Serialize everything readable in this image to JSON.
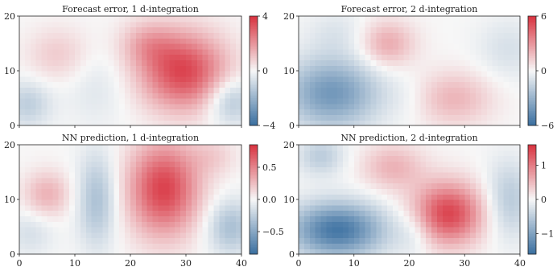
{
  "chart_data": [
    {
      "type": "heatmap",
      "title": "Forecast error, 1 d-integration",
      "xlim": [
        0,
        40
      ],
      "ylim": [
        0,
        20
      ],
      "x_ticks": [],
      "y_ticks": [
        "0",
        "10",
        "20"
      ],
      "colorbar": {
        "min": -4,
        "max": 4,
        "ticks": [
          "4",
          "0",
          "−4"
        ],
        "tick_values": [
          4,
          0,
          -4
        ]
      },
      "colormap": {
        "negative": "#3a6fa0",
        "neutral": "#f7f7f7",
        "positive": "#d8323f"
      },
      "blobs": [
        {
          "x": 29.5,
          "y": 10,
          "sx": 5.5,
          "sy": 5,
          "amp": 3.6
        },
        {
          "x": 23,
          "y": 15,
          "sx": 3.5,
          "sy": 3,
          "amp": 1.2
        },
        {
          "x": 7,
          "y": 13,
          "sx": 4,
          "sy": 3.5,
          "amp": 0.9
        },
        {
          "x": 1.5,
          "y": 4,
          "sx": 3,
          "sy": 3,
          "amp": -1.2
        },
        {
          "x": 38,
          "y": 4.5,
          "sx": 3,
          "sy": 3,
          "amp": -1.6
        },
        {
          "x": 14,
          "y": 7,
          "sx": 4,
          "sy": 5,
          "amp": -0.5
        }
      ]
    },
    {
      "type": "heatmap",
      "title": "Forecast error, 2 d-integration",
      "xlim": [
        0,
        40
      ],
      "ylim": [
        0,
        20
      ],
      "x_ticks": [],
      "y_ticks": [
        "0",
        "10",
        "20"
      ],
      "colorbar": {
        "min": -6,
        "max": 6,
        "ticks": [
          "6",
          "0",
          "−6"
        ],
        "tick_values": [
          6,
          0,
          -6
        ]
      },
      "colormap": {
        "negative": "#3a6fa0",
        "neutral": "#f7f7f7",
        "positive": "#d8323f"
      },
      "blobs": [
        {
          "x": 6,
          "y": 6,
          "sx": 6,
          "sy": 4.5,
          "amp": -4.2
        },
        {
          "x": 16,
          "y": 15,
          "sx": 3.5,
          "sy": 3,
          "amp": 2.4
        },
        {
          "x": 28,
          "y": 5,
          "sx": 5,
          "sy": 3.5,
          "amp": 2.0
        },
        {
          "x": 38,
          "y": 14,
          "sx": 4,
          "sy": 4,
          "amp": -1.0
        },
        {
          "x": 20,
          "y": 5,
          "sx": 3,
          "sy": 3,
          "amp": -0.4
        },
        {
          "x": 7,
          "y": 17,
          "sx": 4,
          "sy": 3,
          "amp": -0.8
        }
      ]
    },
    {
      "type": "heatmap",
      "title": "NN prediction, 1 d-integration",
      "xlim": [
        0,
        40
      ],
      "ylim": [
        0,
        20
      ],
      "x_ticks": [
        "0",
        "10",
        "20",
        "30",
        "40"
      ],
      "y_ticks": [
        "0",
        "10",
        "20"
      ],
      "colorbar": {
        "min": -0.85,
        "max": 0.85,
        "ticks": [
          "0.5",
          "0.0",
          "−0.5"
        ],
        "tick_values": [
          0.5,
          0,
          -0.5
        ]
      },
      "colormap": {
        "negative": "#3a6fa0",
        "neutral": "#f7f7f7",
        "positive": "#d8323f"
      },
      "blobs": [
        {
          "x": 26,
          "y": 12,
          "sx": 4.5,
          "sy": 6,
          "amp": 0.78
        },
        {
          "x": 5,
          "y": 11,
          "sx": 3,
          "sy": 3,
          "amp": 0.3
        },
        {
          "x": 14,
          "y": 10,
          "sx": 2.5,
          "sy": 6,
          "amp": -0.35
        },
        {
          "x": 2,
          "y": 4,
          "sx": 3,
          "sy": 3,
          "amp": -0.15
        },
        {
          "x": 38,
          "y": 5,
          "sx": 3,
          "sy": 3.5,
          "amp": -0.35
        },
        {
          "x": 35,
          "y": 18,
          "sx": 3,
          "sy": 2.5,
          "amp": 0.15
        }
      ]
    },
    {
      "type": "heatmap",
      "title": "NN prediction, 2 d-integration",
      "xlim": [
        0,
        40
      ],
      "ylim": [
        0,
        20
      ],
      "x_ticks": [
        "0",
        "10",
        "20",
        "30",
        "40"
      ],
      "y_ticks": [
        "0",
        "10",
        "20"
      ],
      "colorbar": {
        "min": -1.6,
        "max": 1.6,
        "ticks": [
          "1",
          "0",
          "−1"
        ],
        "tick_values": [
          1,
          0,
          -1
        ]
      },
      "colormap": {
        "negative": "#3a6fa0",
        "neutral": "#f7f7f7",
        "positive": "#d8323f"
      },
      "blobs": [
        {
          "x": 7,
          "y": 4.5,
          "sx": 6,
          "sy": 3.5,
          "amp": -1.5
        },
        {
          "x": 27,
          "y": 7.5,
          "sx": 4.5,
          "sy": 4,
          "amp": 1.45
        },
        {
          "x": 17,
          "y": 16,
          "sx": 4,
          "sy": 3,
          "amp": 0.55
        },
        {
          "x": 38,
          "y": 10,
          "sx": 3,
          "sy": 5,
          "amp": -0.55
        },
        {
          "x": 4,
          "y": 18,
          "sx": 3,
          "sy": 2.5,
          "amp": -0.5
        },
        {
          "x": 21,
          "y": 4,
          "sx": 2.5,
          "sy": 3,
          "amp": -0.3
        }
      ]
    }
  ]
}
